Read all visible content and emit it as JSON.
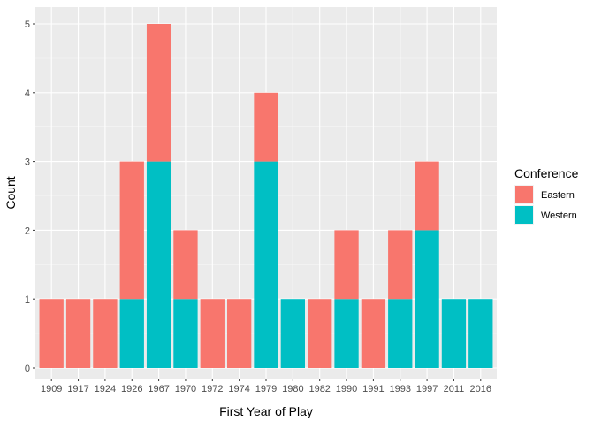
{
  "chart_data": {
    "type": "bar",
    "stacked": true,
    "xlabel": "First Year of Play",
    "ylabel": "Count",
    "categories": [
      "1909",
      "1917",
      "1924",
      "1926",
      "1967",
      "1970",
      "1972",
      "1974",
      "1979",
      "1980",
      "1982",
      "1990",
      "1991",
      "1993",
      "1997",
      "2011",
      "2016"
    ],
    "series": [
      {
        "name": "Eastern",
        "color": "#F8766D",
        "values": [
          1,
          1,
          1,
          2,
          2,
          1,
          1,
          1,
          1,
          0,
          1,
          1,
          1,
          1,
          1,
          0,
          0
        ]
      },
      {
        "name": "Western",
        "color": "#00BFC4",
        "values": [
          0,
          0,
          0,
          1,
          3,
          1,
          0,
          0,
          3,
          1,
          0,
          1,
          0,
          1,
          2,
          1,
          1
        ]
      }
    ],
    "ylim": [
      0,
      5
    ],
    "yticks": [
      0,
      1,
      2,
      3,
      4,
      5
    ],
    "grid": true,
    "legend": {
      "title": "Conference",
      "position": "right"
    }
  }
}
